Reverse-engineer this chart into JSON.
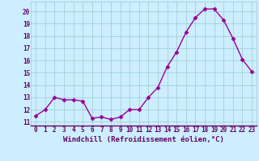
{
  "x": [
    0,
    1,
    2,
    3,
    4,
    5,
    6,
    7,
    8,
    9,
    10,
    11,
    12,
    13,
    14,
    15,
    16,
    17,
    18,
    19,
    20,
    21,
    22,
    23
  ],
  "y": [
    11.5,
    12.0,
    13.0,
    12.8,
    12.8,
    12.7,
    11.3,
    11.4,
    11.2,
    11.4,
    12.0,
    12.0,
    13.0,
    13.8,
    15.5,
    16.7,
    18.3,
    19.5,
    20.2,
    20.2,
    19.3,
    17.8,
    16.1,
    15.1
  ],
  "line_color": "#990099",
  "marker": "D",
  "markersize": 2.5,
  "linewidth": 1.0,
  "bg_color": "#cceeff",
  "grid_color": "#99cccc",
  "xlabel": "Windchill (Refroidissement éolien,°C)",
  "xlabel_color": "#660066",
  "xlabel_fontsize": 6.5,
  "tick_color": "#660066",
  "tick_fontsize": 5.5,
  "ytick_values": [
    11,
    12,
    13,
    14,
    15,
    16,
    17,
    18,
    19,
    20
  ],
  "ylim": [
    10.7,
    20.8
  ],
  "xlim": [
    -0.5,
    23.5
  ]
}
